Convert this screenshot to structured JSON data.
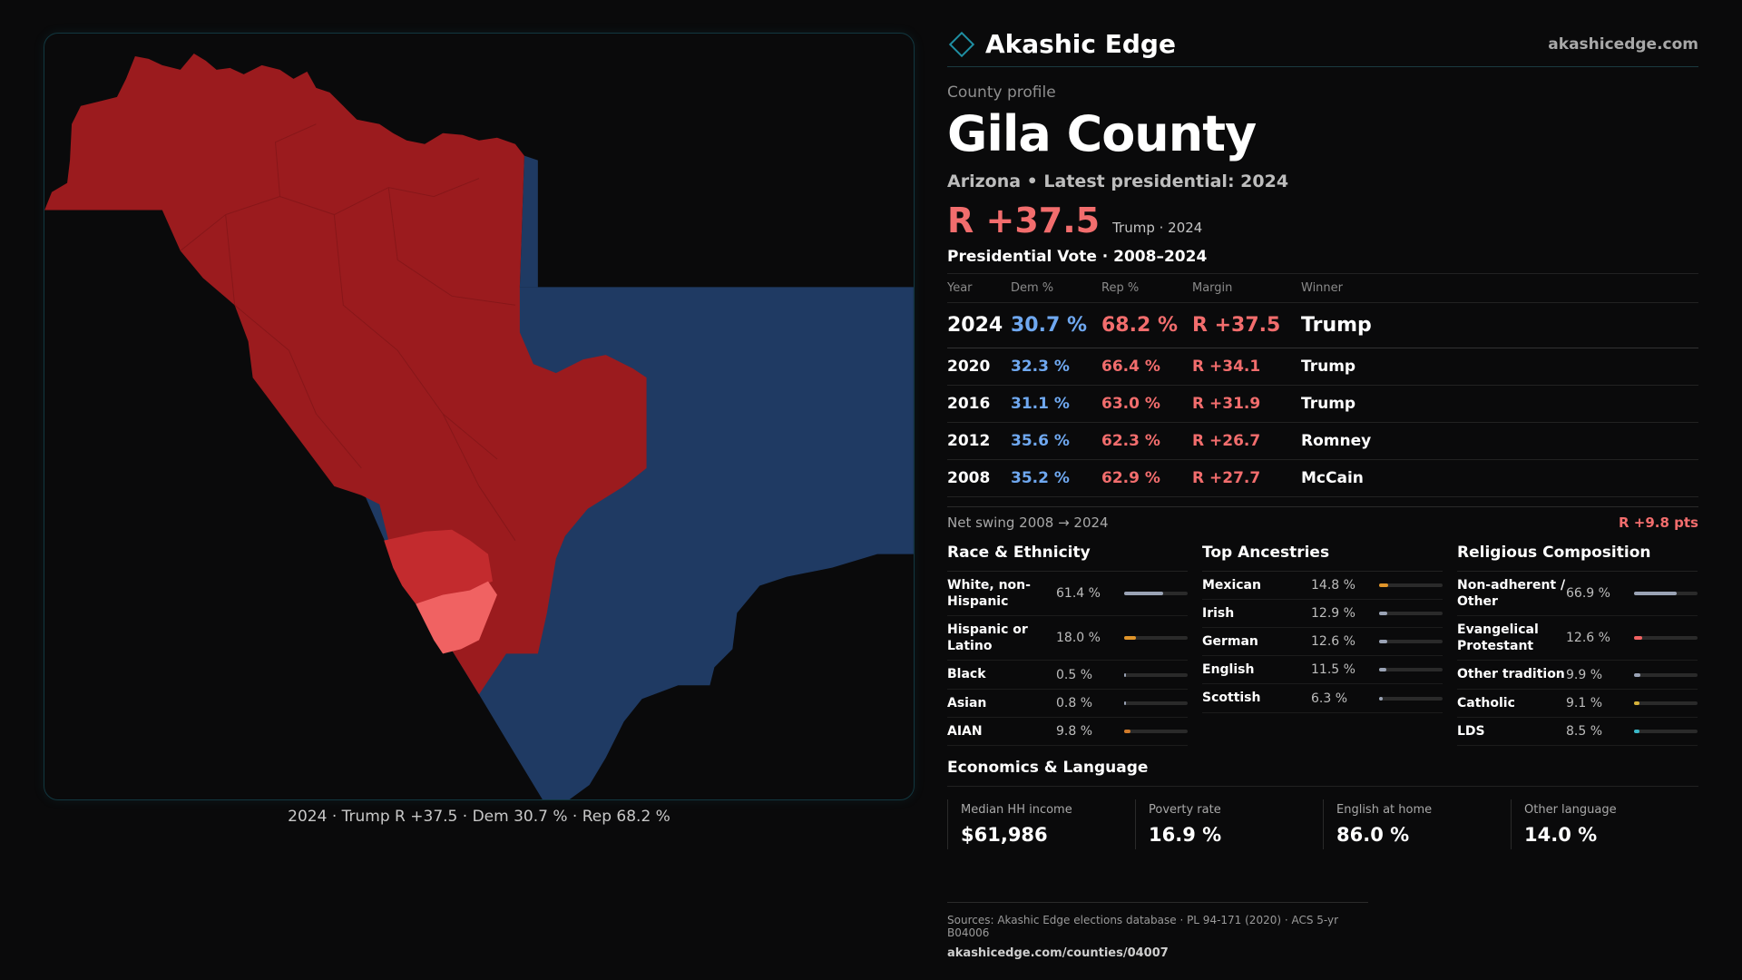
{
  "header": {
    "brand": "Akashic Edge",
    "site": "akashicedge.com"
  },
  "profile": {
    "eyebrow": "County profile",
    "title": "Gila County",
    "subtitle": "Arizona • Latest presidential: 2024",
    "margin": "R +37.5",
    "margin_note": "Trump · 2024"
  },
  "map": {
    "caption": "2024 · Trump R +37.5 · Dem 30.7 % · Rep 68.2 %",
    "colors": {
      "rep_dark": "#9b1b1e",
      "rep_mid": "#c32b2e",
      "rep_light": "#f06262",
      "dem": "#1f3a63"
    }
  },
  "votes": {
    "title": "Presidential Vote · 2008–2024",
    "headers": [
      "Year",
      "Dem %",
      "Rep %",
      "Margin",
      "Winner"
    ],
    "rows": [
      {
        "year": "2024",
        "dem": "30.7 %",
        "rep": "68.2 %",
        "margin": "R +37.5",
        "winner": "Trump"
      },
      {
        "year": "2020",
        "dem": "32.3 %",
        "rep": "66.4 %",
        "margin": "R +34.1",
        "winner": "Trump"
      },
      {
        "year": "2016",
        "dem": "31.1 %",
        "rep": "63.0 %",
        "margin": "R +31.9",
        "winner": "Trump"
      },
      {
        "year": "2012",
        "dem": "35.6 %",
        "rep": "62.3 %",
        "margin": "R +26.7",
        "winner": "Romney"
      },
      {
        "year": "2008",
        "dem": "35.2 %",
        "rep": "62.9 %",
        "margin": "R +27.7",
        "winner": "McCain"
      }
    ],
    "swing_label": "Net swing 2008 → 2024",
    "swing_value": "R +9.8 pts"
  },
  "race": {
    "title": "Race & Ethnicity",
    "rows": [
      {
        "label": "White, non-Hispanic",
        "value": "61.4 %",
        "fraction": 0.614,
        "color": "#9aa3b5"
      },
      {
        "label": "Hispanic or Latino",
        "value": "18.0 %",
        "fraction": 0.18,
        "color": "#e0952a"
      },
      {
        "label": "Black",
        "value": "0.5 %",
        "fraction": 0.005,
        "color": "#9aa3b5"
      },
      {
        "label": "Asian",
        "value": "0.8 %",
        "fraction": 0.008,
        "color": "#9aa3b5"
      },
      {
        "label": "AIAN",
        "value": "9.8 %",
        "fraction": 0.098,
        "color": "#d07a2a"
      }
    ]
  },
  "ancestry": {
    "title": "Top Ancestries",
    "rows": [
      {
        "label": "Mexican",
        "value": "14.8 %",
        "fraction": 0.148,
        "color": "#e0952a"
      },
      {
        "label": "Irish",
        "value": "12.9 %",
        "fraction": 0.129,
        "color": "#9aa3b5"
      },
      {
        "label": "German",
        "value": "12.6 %",
        "fraction": 0.126,
        "color": "#9aa3b5"
      },
      {
        "label": "English",
        "value": "11.5 %",
        "fraction": 0.115,
        "color": "#9aa3b5"
      },
      {
        "label": "Scottish",
        "value": "6.3 %",
        "fraction": 0.063,
        "color": "#9aa3b5"
      }
    ]
  },
  "religion": {
    "title": "Religious Composition",
    "rows": [
      {
        "label": "Non-adherent / Other",
        "value": "66.9 %",
        "fraction": 0.669,
        "color": "#9aa3b5"
      },
      {
        "label": "Evangelical Protestant",
        "value": "12.6 %",
        "fraction": 0.126,
        "color": "#f06262"
      },
      {
        "label": "Other tradition",
        "value": "9.9 %",
        "fraction": 0.099,
        "color": "#9aa3b5"
      },
      {
        "label": "Catholic",
        "value": "9.1 %",
        "fraction": 0.091,
        "color": "#d6b23a"
      },
      {
        "label": "LDS",
        "value": "8.5 %",
        "fraction": 0.085,
        "color": "#3ab8c8"
      }
    ]
  },
  "economics": {
    "title": "Economics & Language",
    "cells": [
      {
        "label": "Median HH income",
        "value": "$61,986"
      },
      {
        "label": "Poverty rate",
        "value": "16.9 %"
      },
      {
        "label": "English at home",
        "value": "86.0 %"
      },
      {
        "label": "Other language",
        "value": "14.0 %"
      }
    ]
  },
  "footer": {
    "sources": "Sources: Akashic Edge elections database · PL 94-171 (2020) · ACS 5-yr B04006",
    "url": "akashicedge.com/counties/04007"
  }
}
